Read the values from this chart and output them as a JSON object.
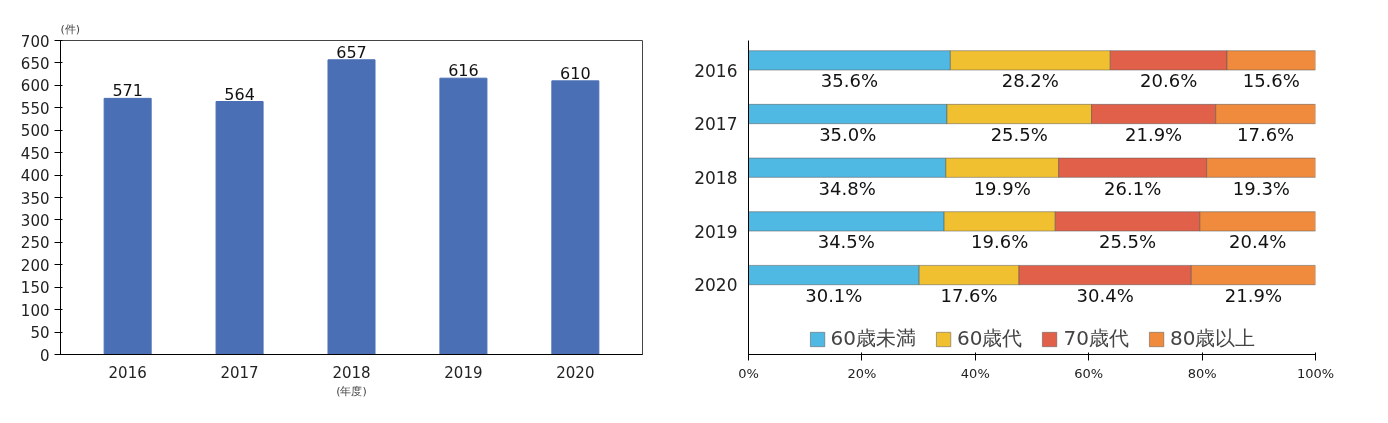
{
  "chart_data": [
    {
      "type": "bar",
      "ylabel": "(件)",
      "xlabel": "(年度)",
      "categories": [
        "2016",
        "2017",
        "2018",
        "2019",
        "2020"
      ],
      "values": [
        571,
        564,
        657,
        616,
        610
      ],
      "color": "#4a6fb5",
      "ylim": [
        0,
        700
      ],
      "yticks": [
        0,
        50,
        100,
        150,
        200,
        250,
        300,
        350,
        400,
        450,
        500,
        550,
        600,
        650,
        700
      ],
      "data_labels": true,
      "grid": false,
      "legend": false
    },
    {
      "type": "bar",
      "orientation": "horizontal",
      "stacked": true,
      "categories": [
        "2016",
        "2017",
        "2018",
        "2019",
        "2020"
      ],
      "xlim": [
        0,
        100
      ],
      "xticks": [
        {
          "value": 0,
          "label": "0%"
        },
        {
          "value": 20,
          "label": "20%"
        },
        {
          "value": 40,
          "label": "40%"
        },
        {
          "value": 60,
          "label": "60%"
        },
        {
          "value": 80,
          "label": "80%"
        },
        {
          "value": 100,
          "label": "100%"
        }
      ],
      "series": [
        {
          "name": "60歳未満",
          "color": "#4fb8e3",
          "values": [
            35.6,
            35.0,
            34.8,
            34.5,
            30.1
          ],
          "value_labels": [
            "35.6%",
            "35.0%",
            "34.8%",
            "34.5%",
            "30.1%"
          ]
        },
        {
          "name": "60歳代",
          "color": "#f0c030",
          "values": [
            28.2,
            25.5,
            19.9,
            19.6,
            17.6
          ],
          "value_labels": [
            "28.2%",
            "25.5%",
            "19.9%",
            "19.6%",
            "17.6%"
          ]
        },
        {
          "name": "70歳代",
          "color": "#e0604a",
          "values": [
            20.6,
            21.9,
            26.1,
            25.5,
            30.4
          ],
          "value_labels": [
            "20.6%",
            "21.9%",
            "26.1%",
            "25.5%",
            "30.4%"
          ]
        },
        {
          "name": "80歳以上",
          "color": "#f08a3c",
          "values": [
            15.6,
            17.6,
            19.3,
            20.4,
            21.9
          ],
          "value_labels": [
            "15.6%",
            "17.6%",
            "19.3%",
            "20.4%",
            "21.9%"
          ]
        }
      ],
      "grid": false,
      "legend": "bottom"
    }
  ]
}
